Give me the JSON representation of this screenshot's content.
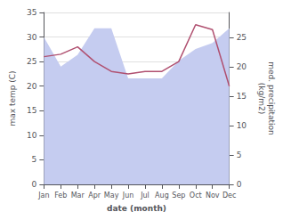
{
  "chart_data": {
    "type": "line",
    "xlabel": "date (month)",
    "ylabel": "max temp (C)",
    "y2label": "med. precipitation\n(kg/m2)",
    "categories": [
      "Jan",
      "Feb",
      "Mar",
      "Apr",
      "May",
      "Jun",
      "Jul",
      "Aug",
      "Sep",
      "Oct",
      "Nov",
      "Dec"
    ],
    "series": [
      {
        "type": "area",
        "axis": "y2",
        "color": "#c5ccf0",
        "values": [
          25,
          20,
          22,
          26.5,
          26.5,
          18,
          18,
          18,
          21,
          23,
          24,
          26.5
        ]
      },
      {
        "type": "line",
        "color": "#b05070",
        "values": [
          26,
          26.5,
          28,
          25,
          23,
          22.5,
          23,
          23,
          25,
          32.5,
          31.5,
          20
        ]
      }
    ],
    "ylim": [
      0,
      35
    ],
    "yticks": [
      0,
      5,
      10,
      15,
      20,
      25,
      30,
      35
    ],
    "y2lim": [
      0,
      29.2
    ],
    "y2ticks": [
      0,
      5,
      10,
      15,
      20,
      25
    ],
    "grid": true
  }
}
